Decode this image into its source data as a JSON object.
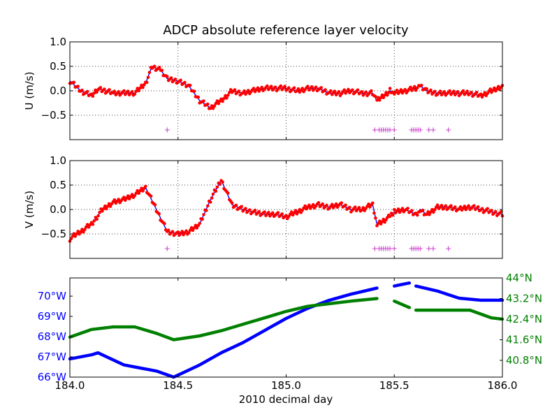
{
  "chart_data": {
    "title": "ADCP absolute reference layer velocity",
    "xlabel": "2010 decimal day",
    "xlim": [
      184.0,
      186.0
    ],
    "xticks": [
      184.0,
      184.5,
      185.0,
      185.5,
      186.0
    ],
    "x_tick_labels": [
      "184.0",
      "184.5",
      "185.0",
      "185.5",
      "186.0"
    ],
    "panels": [
      {
        "type": "scatter",
        "ylabel": "U (m/s)",
        "ylim": [
          -1.0,
          1.0
        ],
        "yticks": [
          -0.5,
          0.0,
          0.5,
          1.0
        ],
        "y_tick_labels": [
          "−0.5",
          "0.0",
          "0.5",
          "1.0"
        ],
        "grid": "x-dotted",
        "series": [
          {
            "marker": "dots",
            "color": "#ff0000",
            "line_color": "#0000ff",
            "x": [
              184.0,
              184.05,
              184.1,
              184.13,
              184.2,
              184.25,
              184.3,
              184.35,
              184.38,
              184.42,
              184.45,
              184.5,
              184.55,
              184.6,
              184.65,
              184.7,
              184.75,
              184.8,
              184.85,
              184.9,
              184.95,
              185.0,
              185.05,
              185.1,
              185.15,
              185.2,
              185.25,
              185.3,
              185.35,
              185.4,
              185.42,
              185.48,
              185.5,
              185.55,
              185.6,
              185.62,
              185.65,
              185.7,
              185.75,
              185.8,
              185.85,
              185.9,
              185.95,
              186.0
            ],
            "y": [
              0.2,
              0.0,
              -0.1,
              0.05,
              -0.05,
              -0.05,
              -0.05,
              0.15,
              0.5,
              0.42,
              0.25,
              0.2,
              0.1,
              -0.2,
              -0.35,
              -0.2,
              0.0,
              -0.05,
              0.0,
              0.05,
              0.05,
              0.05,
              0.0,
              0.05,
              0.05,
              -0.05,
              -0.05,
              0.0,
              -0.05,
              -0.05,
              -0.2,
              0.0,
              -0.05,
              0.0,
              0.05,
              0.1,
              0.0,
              -0.05,
              -0.05,
              -0.05,
              -0.05,
              -0.1,
              0.0,
              0.1
            ]
          },
          {
            "marker": "+",
            "color": "#cc44cc",
            "x": [
              184.45,
              185.41,
              185.43,
              185.44,
              185.45,
              185.46,
              185.47,
              185.48,
              185.5,
              185.58,
              185.59,
              185.6,
              185.61,
              185.62,
              185.66,
              185.68,
              185.75
            ],
            "y": [
              -0.8,
              -0.8,
              -0.8,
              -0.8,
              -0.8,
              -0.8,
              -0.8,
              -0.8,
              -0.8,
              -0.8,
              -0.8,
              -0.8,
              -0.8,
              -0.8,
              -0.8,
              -0.8,
              -0.8
            ]
          }
        ]
      },
      {
        "type": "scatter",
        "ylabel": "V (m/s)",
        "ylim": [
          -1.0,
          1.0
        ],
        "yticks": [
          -0.5,
          0.0,
          0.5,
          1.0
        ],
        "y_tick_labels": [
          "−0.5",
          "0.0",
          "0.5",
          "1.0"
        ],
        "grid": "x-dotted",
        "series": [
          {
            "marker": "dots",
            "color": "#ff0000",
            "line_color": "#0000ff",
            "x": [
              184.0,
              184.05,
              184.1,
              184.15,
              184.2,
              184.25,
              184.3,
              184.35,
              184.4,
              184.45,
              184.5,
              184.55,
              184.6,
              184.65,
              184.7,
              184.75,
              184.8,
              184.85,
              184.9,
              184.95,
              185.0,
              185.05,
              185.1,
              185.15,
              185.2,
              185.25,
              185.3,
              185.35,
              185.4,
              185.42,
              185.48,
              185.5,
              185.55,
              185.6,
              185.62,
              185.65,
              185.7,
              185.75,
              185.8,
              185.85,
              185.9,
              185.95,
              186.0
            ],
            "y": [
              -0.6,
              -0.45,
              -0.3,
              0.0,
              0.15,
              0.2,
              0.3,
              0.45,
              0.0,
              -0.45,
              -0.5,
              -0.45,
              -0.3,
              0.2,
              0.6,
              0.1,
              0.0,
              -0.05,
              -0.1,
              -0.1,
              -0.15,
              -0.05,
              0.05,
              0.1,
              0.05,
              0.1,
              0.0,
              0.0,
              0.1,
              -0.3,
              -0.15,
              -0.05,
              0.0,
              -0.1,
              0.0,
              -0.1,
              0.05,
              0.05,
              0.0,
              0.05,
              0.0,
              -0.05,
              -0.1
            ]
          },
          {
            "marker": "+",
            "color": "#cc44cc",
            "x": [
              184.45,
              185.41,
              185.43,
              185.44,
              185.45,
              185.46,
              185.47,
              185.48,
              185.5,
              185.58,
              185.59,
              185.6,
              185.61,
              185.62,
              185.66,
              185.68,
              185.75
            ],
            "y": [
              -0.8,
              -0.8,
              -0.8,
              -0.8,
              -0.8,
              -0.8,
              -0.8,
              -0.8,
              -0.8,
              -0.8,
              -0.8,
              -0.8,
              -0.8,
              -0.8,
              -0.8,
              -0.8,
              -0.8
            ]
          }
        ]
      },
      {
        "type": "line",
        "left_axis": {
          "color": "#0000ff",
          "ylim": [
            -66.0,
            -70.9
          ],
          "yticks": [
            -66,
            -67,
            -68,
            -69,
            -70
          ],
          "y_tick_labels": [
            "66°W",
            "67°W",
            "68°W",
            "69°W",
            "70°W"
          ]
        },
        "right_axis": {
          "color": "#008000",
          "ylim": [
            40.15,
            44.0
          ],
          "yticks": [
            44.0,
            43.2,
            42.4,
            41.6,
            40.8
          ],
          "y_tick_labels": [
            "44°N",
            "43.2°N",
            "42.4°N",
            "41.6°N",
            "40.8°N"
          ]
        },
        "series": [
          {
            "axis": "left",
            "color": "#0000ff",
            "x": [
              184.0,
              184.1,
              184.13,
              184.25,
              184.3,
              184.4,
              184.48,
              184.6,
              184.7,
              184.8,
              184.9,
              185.0,
              185.1,
              185.2,
              185.3,
              185.42,
              null,
              185.5,
              185.57,
              null,
              185.6,
              185.7,
              185.8,
              185.9,
              185.95,
              186.0
            ],
            "y": [
              -66.9,
              -67.1,
              -67.2,
              -66.6,
              -66.5,
              -66.3,
              -66.0,
              -66.6,
              -67.2,
              -67.7,
              -68.3,
              -68.9,
              -69.4,
              -69.8,
              -70.1,
              -70.4,
              null,
              -70.5,
              -70.65,
              null,
              -70.5,
              -70.25,
              -69.9,
              -69.8,
              -69.8,
              -69.8
            ]
          },
          {
            "axis": "right",
            "color": "#008000",
            "x": [
              184.0,
              184.05,
              184.1,
              184.2,
              184.3,
              184.4,
              184.48,
              184.6,
              184.7,
              184.8,
              184.9,
              185.0,
              185.1,
              185.2,
              185.3,
              185.42,
              null,
              185.5,
              185.57,
              null,
              185.6,
              185.7,
              185.8,
              185.85,
              185.95,
              186.0
            ],
            "y": [
              41.7,
              41.85,
              42.0,
              42.1,
              42.1,
              41.85,
              41.6,
              41.75,
              41.95,
              42.2,
              42.45,
              42.7,
              42.9,
              43.0,
              43.1,
              43.2,
              null,
              43.1,
              42.85,
              null,
              42.75,
              42.75,
              42.75,
              42.75,
              42.45,
              42.4
            ]
          }
        ]
      }
    ]
  }
}
